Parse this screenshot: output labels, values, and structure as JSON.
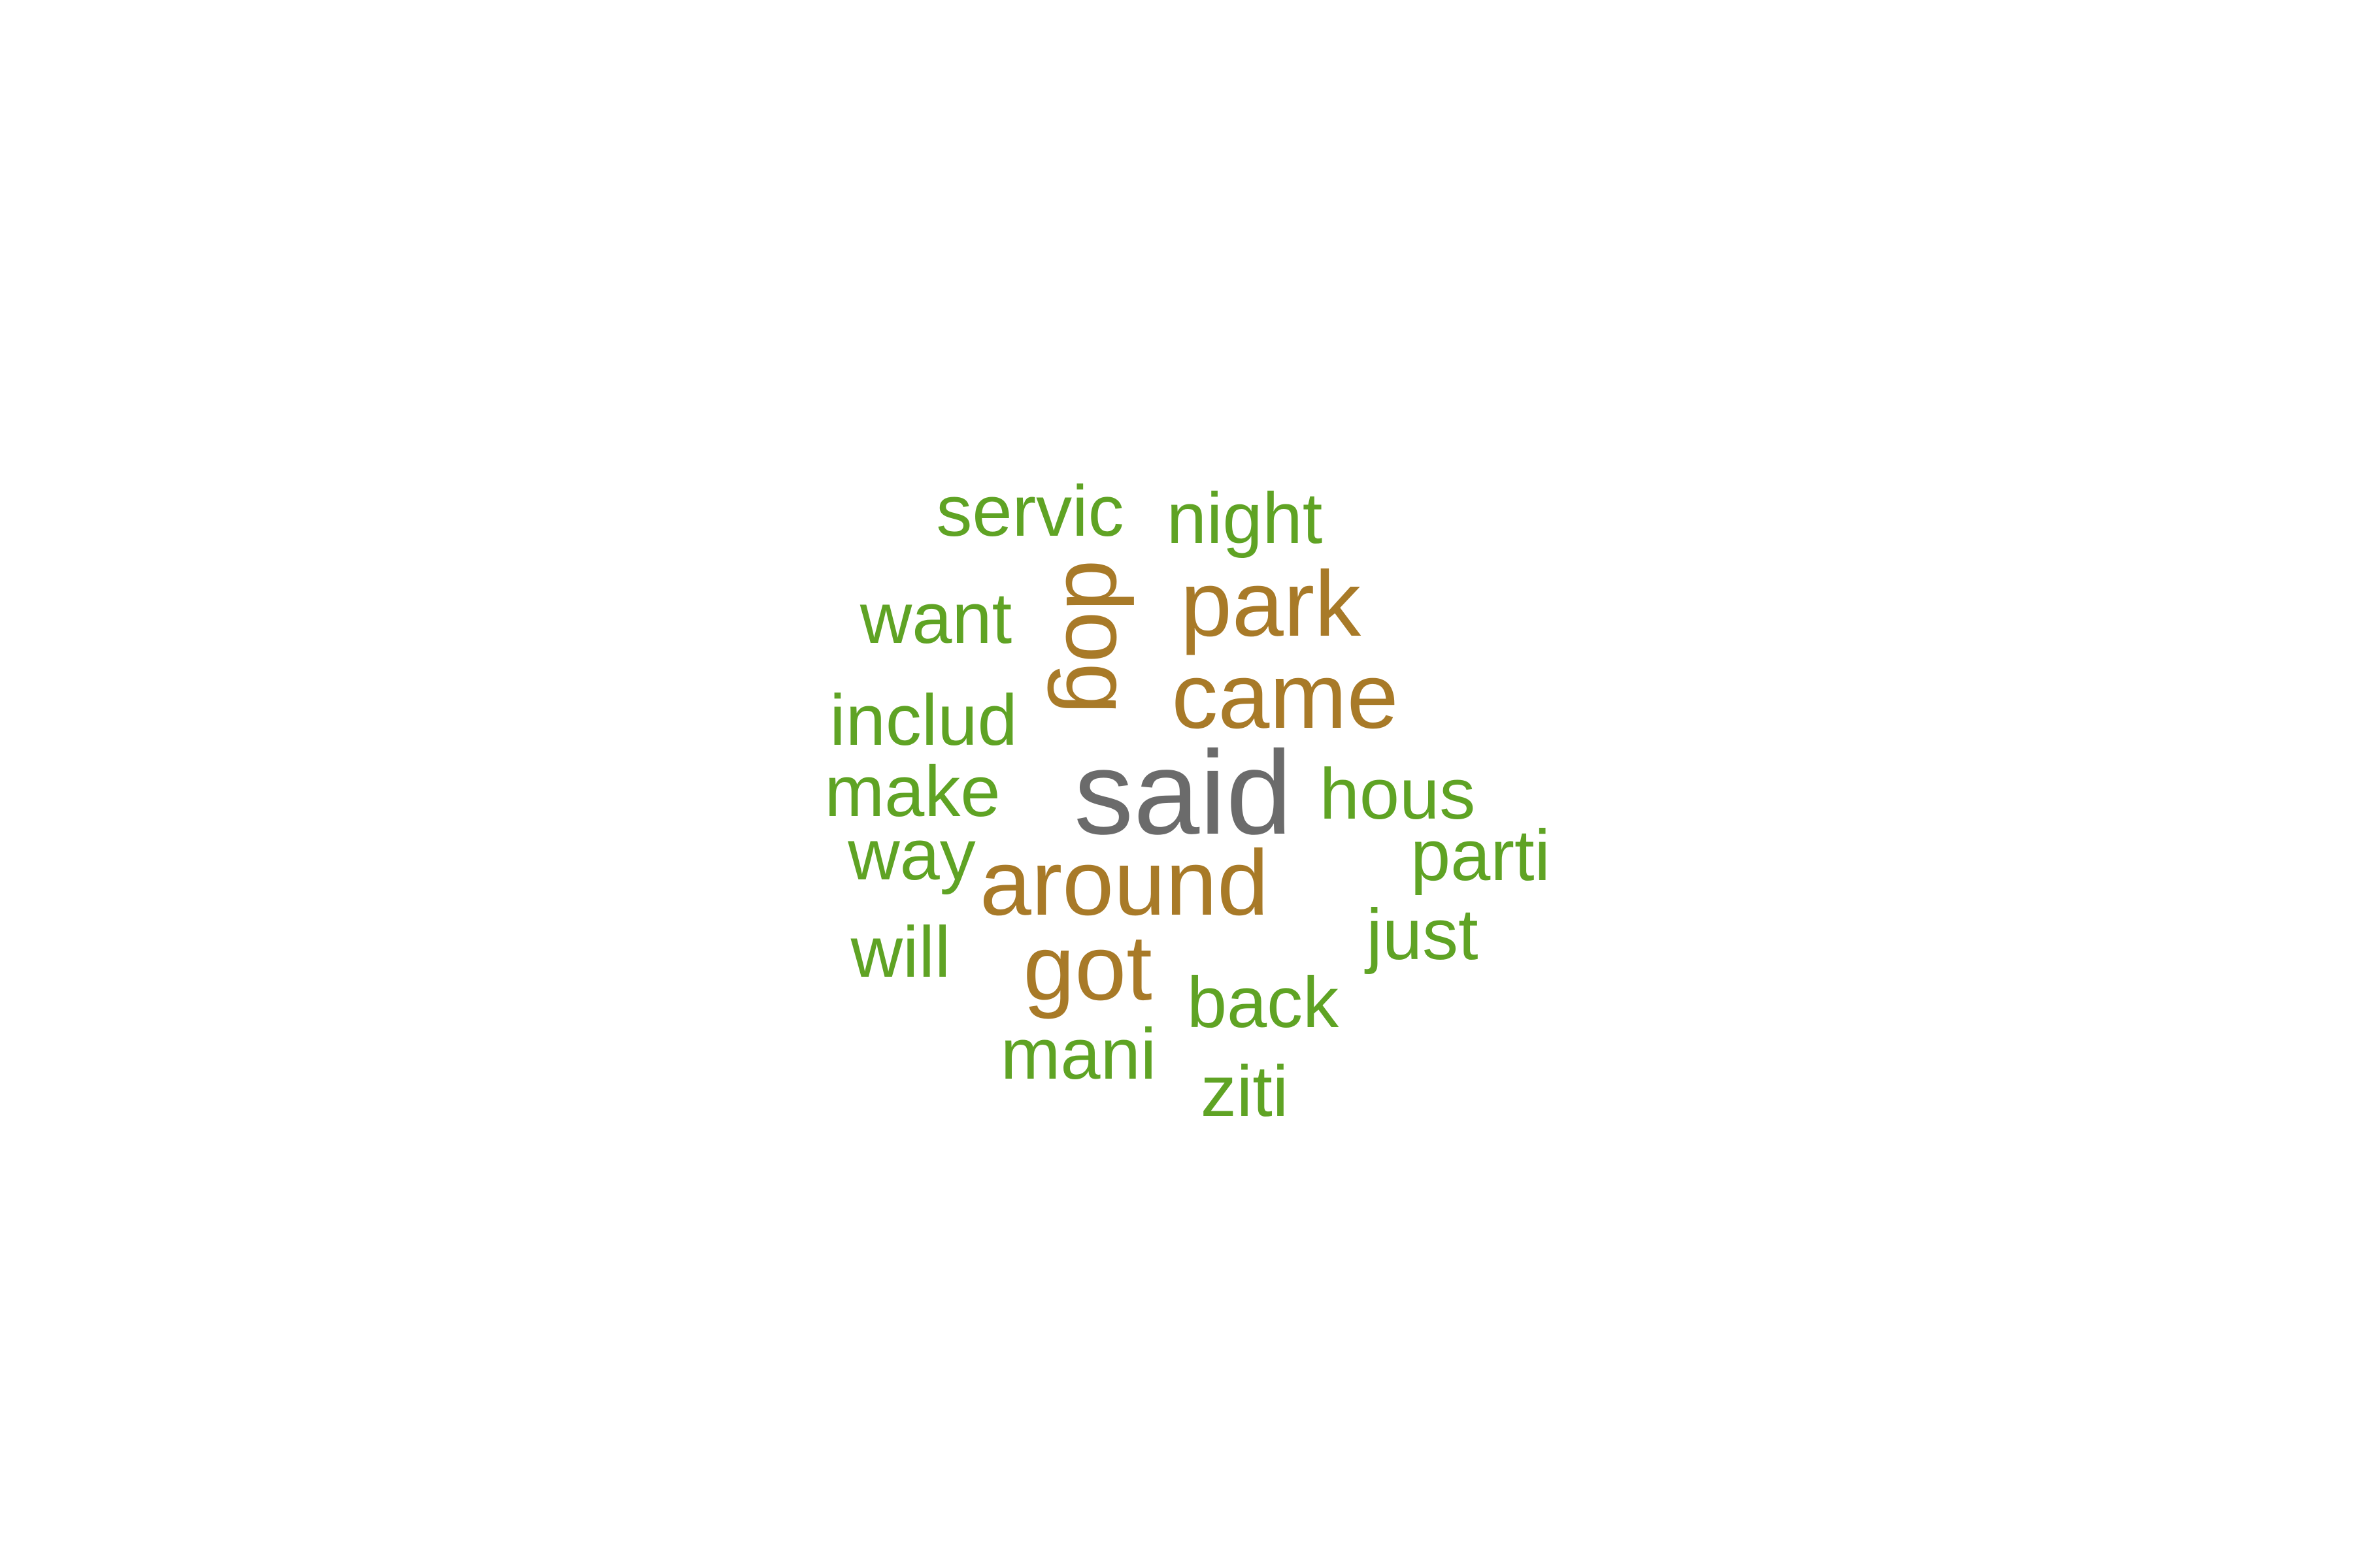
{
  "colors": {
    "background": "#ffffff",
    "tier_high": "#6b6b6b",
    "tier_mid": "#a87a28",
    "tier_low": "#5fa324"
  },
  "words": [
    {
      "id": "said",
      "text": "said",
      "tier": "high"
    },
    {
      "id": "around",
      "text": "around",
      "tier": "mid"
    },
    {
      "id": "came",
      "text": "came",
      "tier": "mid"
    },
    {
      "id": "park",
      "text": "park",
      "tier": "mid"
    },
    {
      "id": "dog",
      "text": "dog",
      "tier": "mid",
      "rotated": true
    },
    {
      "id": "got",
      "text": "got",
      "tier": "mid"
    },
    {
      "id": "servic",
      "text": "servic",
      "tier": "low"
    },
    {
      "id": "night",
      "text": "night",
      "tier": "low"
    },
    {
      "id": "want",
      "text": "want",
      "tier": "low"
    },
    {
      "id": "includ",
      "text": "includ",
      "tier": "low"
    },
    {
      "id": "make",
      "text": "make",
      "tier": "low"
    },
    {
      "id": "hous",
      "text": "hous",
      "tier": "low"
    },
    {
      "id": "way",
      "text": "way",
      "tier": "low"
    },
    {
      "id": "parti",
      "text": "parti",
      "tier": "low"
    },
    {
      "id": "will",
      "text": "will",
      "tier": "low"
    },
    {
      "id": "just",
      "text": "just",
      "tier": "low"
    },
    {
      "id": "back",
      "text": "back",
      "tier": "low"
    },
    {
      "id": "mani",
      "text": "mani",
      "tier": "low"
    },
    {
      "id": "ziti",
      "text": "ziti",
      "tier": "low"
    }
  ]
}
